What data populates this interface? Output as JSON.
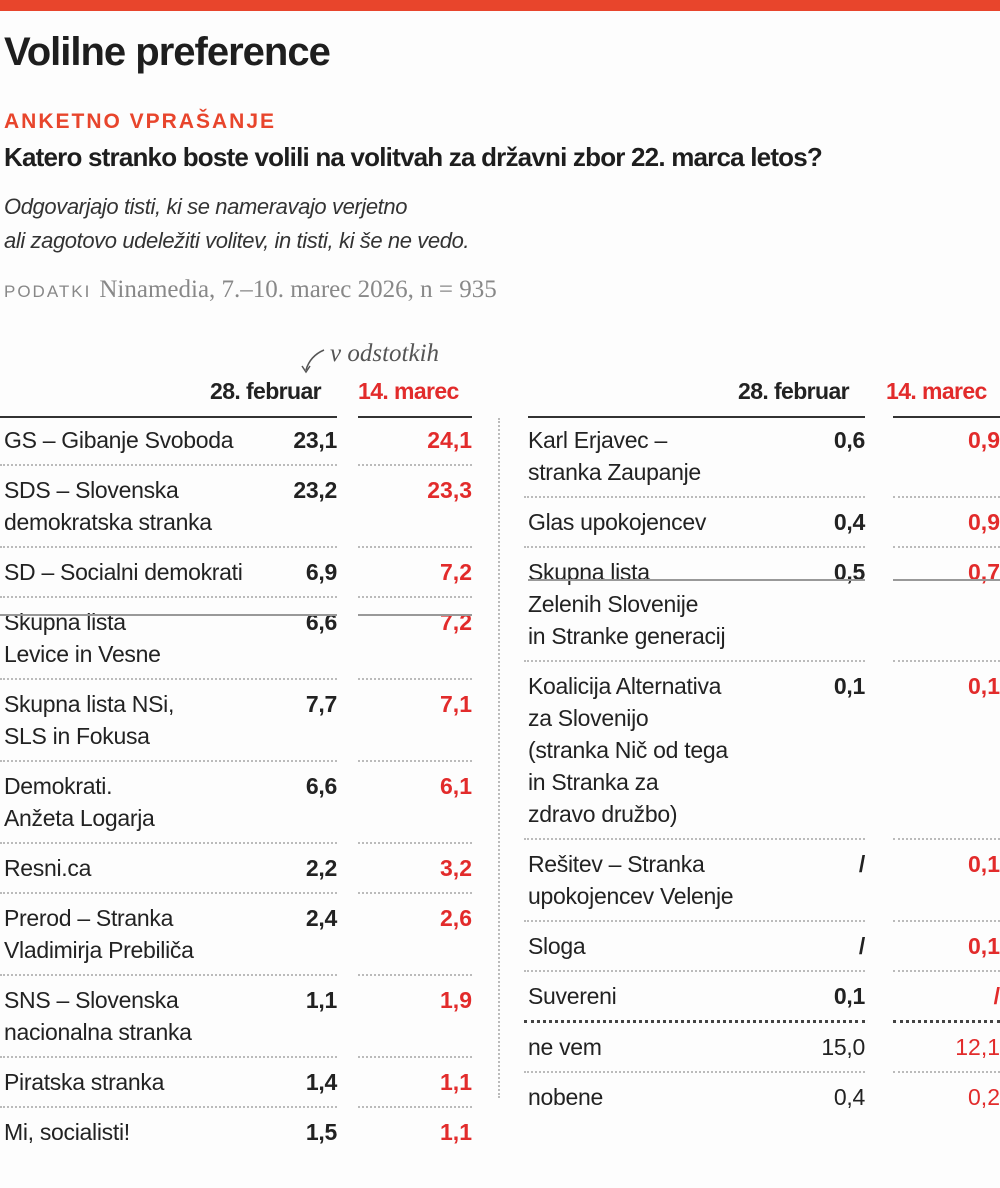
{
  "title": "Volilne preference",
  "kicker": "ANKETNO VPRAŠANJE",
  "question": "Katero stranko boste volili na volitvah za državni zbor 22. marca letos?",
  "note_lines": [
    "Odgovarjajo tisti, ki se nameravajo verjetno",
    "ali zagotovo udeležiti volitev, in tisti, ki še ne vedo."
  ],
  "source": {
    "label": "PODATKI",
    "text": "Ninamedia, 7.–10. marec 2026, n = 935"
  },
  "unit": "v odstotkih",
  "colors": {
    "accent": "#e8452c",
    "series2": "#e22b2b"
  },
  "chart_data": {
    "type": "table",
    "columns": [
      "28. februar",
      "14. marec"
    ],
    "left": [
      {
        "name": [
          "GS – Gibanje Svoboda"
        ],
        "v1": "23,1",
        "v2": "24,1"
      },
      {
        "name": [
          "SDS – Slovenska",
          "demokratska stranka"
        ],
        "v1": "23,2",
        "v2": "23,3"
      },
      {
        "name": [
          "SD – Socialni demokrati"
        ],
        "v1": "6,9",
        "v2": "7,2"
      },
      {
        "name": [
          "Skupna lista",
          "Levice in Vesne"
        ],
        "v1": "6,6",
        "v2": "7,2"
      },
      {
        "name": [
          "Skupna lista NSi,",
          "SLS in Fokusa"
        ],
        "v1": "7,7",
        "v2": "7,1"
      },
      {
        "name": [
          "Demokrati.",
          "Anžeta Logarja"
        ],
        "v1": "6,6",
        "v2": "6,1"
      },
      {
        "name": [
          "Resni.ca"
        ],
        "v1": "2,2",
        "v2": "3,2"
      },
      {
        "name": [
          "Prerod – Stranka",
          "Vladimirja Prebiliča"
        ],
        "v1": "2,4",
        "v2": "2,6"
      },
      {
        "name": [
          "SNS – Slovenska",
          "nacionalna stranka"
        ],
        "v1": "1,1",
        "v2": "1,9"
      },
      {
        "name": [
          "Piratska stranka"
        ],
        "v1": "1,4",
        "v2": "1,1"
      },
      {
        "name": [
          "Mi, socialisti!"
        ],
        "v1": "1,5",
        "v2": "1,1"
      }
    ],
    "right": [
      {
        "name": [
          "Karl Erjavec –",
          "stranka Zaupanje"
        ],
        "v1": "0,6",
        "v2": "0,9"
      },
      {
        "name": [
          "Glas upokojencev"
        ],
        "v1": "0,4",
        "v2": "0,9"
      },
      {
        "name": [
          "Skupna lista",
          "Zelenih Slovenije",
          "in Stranke generacij"
        ],
        "v1": "0,5",
        "v2": "0,7"
      },
      {
        "name": [
          "Koalicija Alternativa",
          "za Slovenijo",
          "(stranka Nič od tega",
          "in Stranka za",
          "zdravo družbo)"
        ],
        "v1": "0,1",
        "v2": "0,1"
      },
      {
        "name": [
          "Rešitev – Stranka",
          "upokojencev Velenje"
        ],
        "v1": "/",
        "v2": "0,1"
      },
      {
        "name": [
          "Sloga"
        ],
        "v1": "/",
        "v2": "0,1"
      },
      {
        "name": [
          "Suvereni"
        ],
        "v1": "0,1",
        "v2": "/"
      },
      {
        "name": [
          "ne vem"
        ],
        "v1": "15,0",
        "v2": "12,1",
        "regular": true
      },
      {
        "name": [
          "nobene"
        ],
        "v1": "0,4",
        "v2": "0,2",
        "regular": true
      }
    ]
  }
}
